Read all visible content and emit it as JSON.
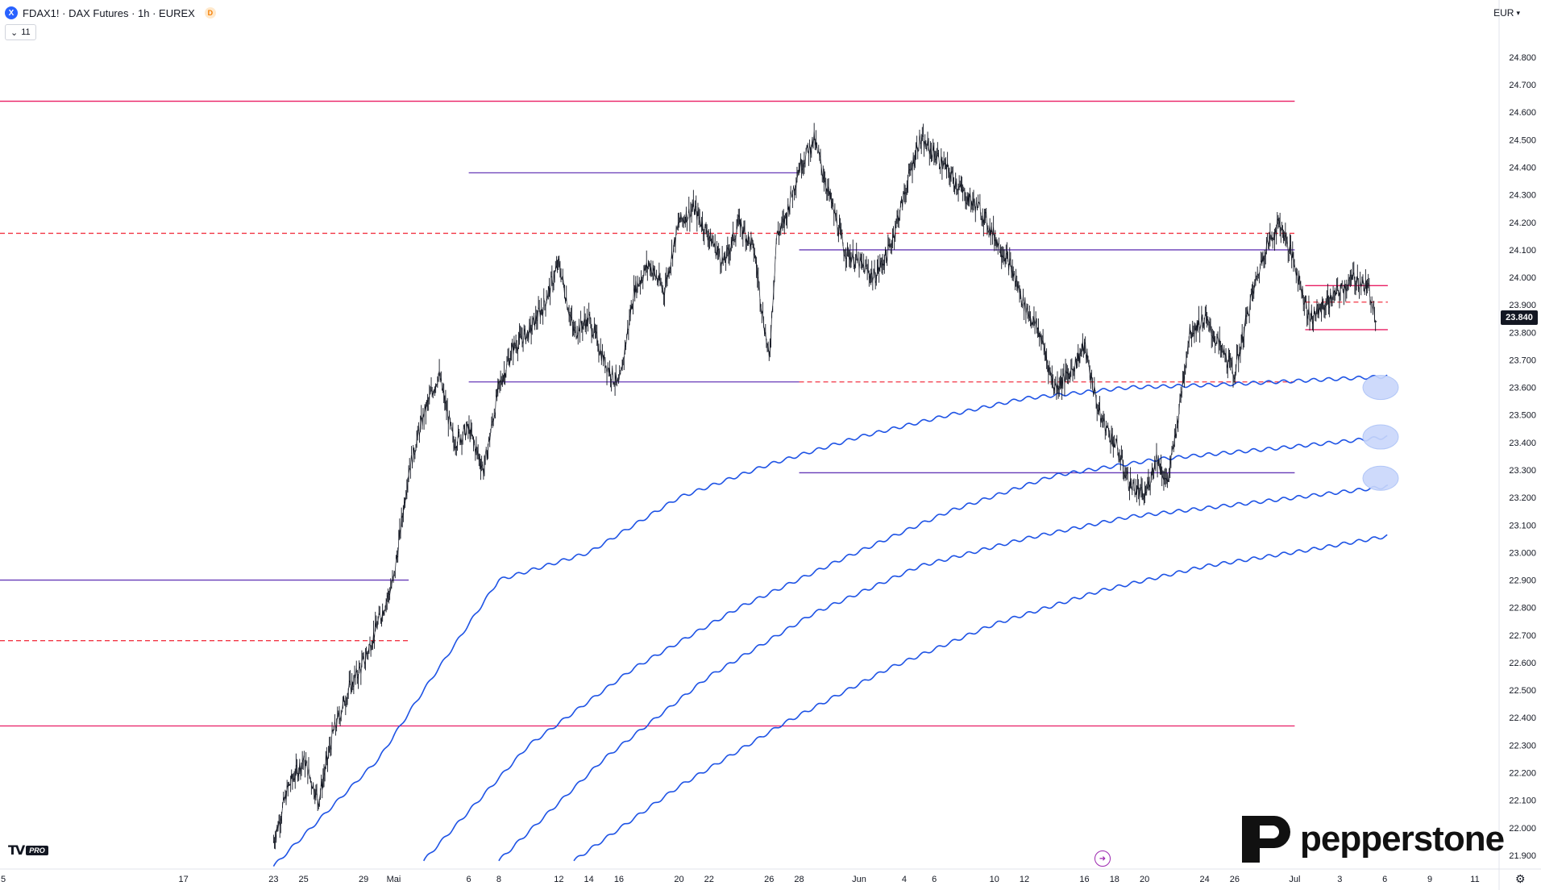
{
  "header": {
    "symbol_icon": "X",
    "title": "FDAX1! · DAX Futures · 1h · EUREX",
    "badge": "D",
    "indicator_count": "11",
    "currency": "EUR"
  },
  "current_price": "23.840",
  "branding": {
    "tradingview": "TV",
    "tradingview_badge": "PRO",
    "pepperstone": "pepperstone"
  },
  "chart_data": {
    "type": "candlestick",
    "title": "",
    "xlabel": "",
    "ylabel": "",
    "ylim": [
      21850,
      24920
    ],
    "y_ticks": [
      "21.900",
      "22.000",
      "22.100",
      "22.200",
      "22.300",
      "22.400",
      "22.500",
      "22.600",
      "22.700",
      "22.800",
      "22.900",
      "23.000",
      "23.100",
      "23.200",
      "23.300",
      "23.400",
      "23.500",
      "23.600",
      "23.700",
      "23.800",
      "23.900",
      "24.000",
      "24.100",
      "24.200",
      "24.300",
      "24.400",
      "24.500",
      "24.600",
      "24.700",
      "24.800"
    ],
    "y_tick_values": [
      21900,
      22000,
      22100,
      22200,
      22300,
      22400,
      22500,
      22600,
      22700,
      22800,
      22900,
      23000,
      23100,
      23200,
      23300,
      23400,
      23500,
      23600,
      23700,
      23800,
      23900,
      24000,
      24100,
      24200,
      24300,
      24400,
      24500,
      24600,
      24700,
      24800
    ],
    "x_ticks": [
      "5",
      "17",
      "23",
      "25",
      "29",
      "Mai",
      "6",
      "8",
      "12",
      "14",
      "16",
      "20",
      "22",
      "26",
      "28",
      "Jun",
      "4",
      "6",
      "10",
      "12",
      "16",
      "18",
      "20",
      "24",
      "26",
      "Jul",
      "3",
      "6",
      "9",
      "11"
    ],
    "x_tick_days": [
      5,
      17,
      23,
      25,
      29,
      31,
      36,
      38,
      42,
      44,
      46,
      50,
      52,
      56,
      58,
      62,
      65,
      67,
      71,
      73,
      77,
      79,
      81,
      85,
      87,
      91,
      94,
      97,
      100,
      103
    ],
    "price_path": [
      [
        23,
        21950
      ],
      [
        24,
        22150
      ],
      [
        25,
        22250
      ],
      [
        26,
        22100
      ],
      [
        27,
        22350
      ],
      [
        28,
        22500
      ],
      [
        29,
        22600
      ],
      [
        30,
        22750
      ],
      [
        31,
        22900
      ],
      [
        32,
        23300
      ],
      [
        33,
        23500
      ],
      [
        34,
        23650
      ],
      [
        35,
        23400
      ],
      [
        36,
        23450
      ],
      [
        37,
        23300
      ],
      [
        38,
        23600
      ],
      [
        39,
        23750
      ],
      [
        40,
        23800
      ],
      [
        41,
        23900
      ],
      [
        42,
        24050
      ],
      [
        43,
        23800
      ],
      [
        44,
        23850
      ],
      [
        45,
        23700
      ],
      [
        46,
        23600
      ],
      [
        47,
        23950
      ],
      [
        48,
        24050
      ],
      [
        49,
        23950
      ],
      [
        50,
        24200
      ],
      [
        51,
        24250
      ],
      [
        52,
        24150
      ],
      [
        53,
        24050
      ],
      [
        54,
        24200
      ],
      [
        55,
        24100
      ],
      [
        56,
        23700
      ],
      [
        56.5,
        24150
      ],
      [
        57,
        24200
      ],
      [
        58,
        24400
      ],
      [
        59,
        24500
      ],
      [
        60,
        24300
      ],
      [
        61,
        24100
      ],
      [
        62,
        24050
      ],
      [
        63,
        24000
      ],
      [
        64,
        24100
      ],
      [
        65,
        24300
      ],
      [
        66,
        24500
      ],
      [
        67,
        24450
      ],
      [
        68,
        24380
      ],
      [
        69,
        24300
      ],
      [
        70,
        24250
      ],
      [
        71,
        24150
      ],
      [
        72,
        24050
      ],
      [
        73,
        23900
      ],
      [
        74,
        23800
      ],
      [
        75,
        23600
      ],
      [
        76,
        23650
      ],
      [
        77,
        23750
      ],
      [
        78,
        23500
      ],
      [
        79,
        23400
      ],
      [
        80,
        23250
      ],
      [
        81,
        23200
      ],
      [
        81.8,
        23350
      ],
      [
        82.5,
        23250
      ],
      [
        83,
        23400
      ],
      [
        84,
        23800
      ],
      [
        85,
        23850
      ],
      [
        86,
        23750
      ],
      [
        87,
        23650
      ],
      [
        88,
        23900
      ],
      [
        89,
        24100
      ],
      [
        90,
        24200
      ],
      [
        91,
        24050
      ],
      [
        92,
        23850
      ],
      [
        93,
        23900
      ],
      [
        94,
        23950
      ],
      [
        95,
        24000
      ],
      [
        96,
        23950
      ],
      [
        96.5,
        23840
      ]
    ],
    "horizontal_levels": [
      {
        "value": 24640,
        "style": "solid",
        "color": "#e91e63",
        "from_day": 0,
        "to_day": 91
      },
      {
        "value": 24380,
        "style": "solid",
        "color": "#673ab7",
        "from_day": 36,
        "to_day": 58
      },
      {
        "value": 24160,
        "style": "dashed",
        "color": "#f23645",
        "from_day": 0,
        "to_day": 91
      },
      {
        "value": 24100,
        "style": "solid",
        "color": "#673ab7",
        "from_day": 58,
        "to_day": 91
      },
      {
        "value": 23620,
        "style": "solid",
        "color": "#673ab7",
        "from_day": 36,
        "to_day": 58
      },
      {
        "value": 23620,
        "style": "dashed",
        "color": "#f23645",
        "from_day": 58,
        "to_day": 91
      },
      {
        "value": 23290,
        "style": "solid",
        "color": "#673ab7",
        "from_day": 58,
        "to_day": 91
      },
      {
        "value": 22900,
        "style": "solid",
        "color": "#673ab7",
        "from_day": 0,
        "to_day": 32
      },
      {
        "value": 22680,
        "style": "dashed",
        "color": "#f23645",
        "from_day": 0,
        "to_day": 32
      },
      {
        "value": 22370,
        "style": "solid",
        "color": "#e91e63",
        "from_day": 0,
        "to_day": 91
      },
      {
        "value": 23970,
        "style": "solid",
        "color": "#e91e63",
        "from_day": 91.7,
        "to_day": 97.2
      },
      {
        "value": 23910,
        "style": "dashed",
        "color": "#f23645",
        "from_day": 91.7,
        "to_day": 97.2
      },
      {
        "value": 23810,
        "style": "solid",
        "color": "#e91e63",
        "from_day": 91.7,
        "to_day": 97.2
      }
    ],
    "moving_averages": [
      {
        "color": "#1e53e5",
        "points": [
          [
            23,
            21860
          ],
          [
            30,
            22250
          ],
          [
            33,
            22500
          ],
          [
            38,
            22900
          ],
          [
            44,
            23000
          ],
          [
            50,
            23200
          ],
          [
            56,
            23320
          ],
          [
            62,
            23420
          ],
          [
            68,
            23500
          ],
          [
            73,
            23560
          ],
          [
            80,
            23600
          ],
          [
            86,
            23610
          ],
          [
            97.2,
            23640
          ]
        ]
      },
      {
        "color": "#1e53e5",
        "points": [
          [
            33,
            21880
          ],
          [
            40,
            22300
          ],
          [
            47,
            22580
          ],
          [
            54,
            22800
          ],
          [
            61,
            22980
          ],
          [
            68,
            23150
          ],
          [
            75,
            23280
          ],
          [
            82,
            23340
          ],
          [
            90,
            23380
          ],
          [
            97.2,
            23420
          ]
        ]
      },
      {
        "color": "#1e53e5",
        "points": [
          [
            38,
            21880
          ],
          [
            45,
            22250
          ],
          [
            52,
            22550
          ],
          [
            59,
            22780
          ],
          [
            66,
            22950
          ],
          [
            73,
            23050
          ],
          [
            80,
            23130
          ],
          [
            88,
            23180
          ],
          [
            97.2,
            23240
          ]
        ]
      },
      {
        "color": "#1e53e5",
        "points": [
          [
            43,
            21880
          ],
          [
            50,
            22150
          ],
          [
            57,
            22380
          ],
          [
            64,
            22580
          ],
          [
            71,
            22740
          ],
          [
            78,
            22860
          ],
          [
            85,
            22950
          ],
          [
            92,
            23010
          ],
          [
            97.2,
            23060
          ]
        ]
      }
    ],
    "target_markers": [
      23600,
      23420,
      23270
    ]
  }
}
